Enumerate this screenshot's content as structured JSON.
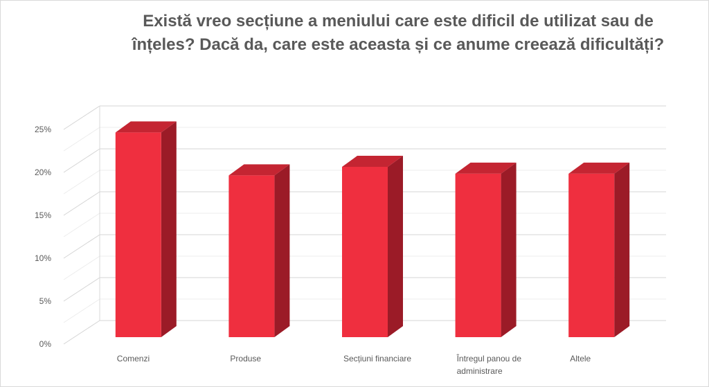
{
  "chart_data": {
    "type": "bar",
    "title": "Există vreo secțiune a meniului care este dificil de utilizat sau de înțeles? Dacă da, care este aceasta și ce anume creează dificultăți?",
    "categories": [
      "Comenzi",
      "Produse",
      "Secțiuni financiare",
      "Întregul panou de administrare",
      "Altele"
    ],
    "category_lines": [
      [
        "Comenzi"
      ],
      [
        "Produse"
      ],
      [
        "Secțiuni financiare"
      ],
      [
        "Întregul panou de",
        "administrare"
      ],
      [
        "Altele"
      ]
    ],
    "values": [
      24,
      19,
      20,
      19.2,
      19.2
    ],
    "ylim": [
      0,
      25
    ],
    "yticks": [
      "0%",
      "5%",
      "10%",
      "15%",
      "20%",
      "25%"
    ],
    "grid": true,
    "three_d": true,
    "colors": {
      "bar_front": "#ef2f3f",
      "bar_side": "#9b1b27",
      "bar_top": "#c42532",
      "grid": "#d9d9d9",
      "text": "#595959"
    }
  }
}
